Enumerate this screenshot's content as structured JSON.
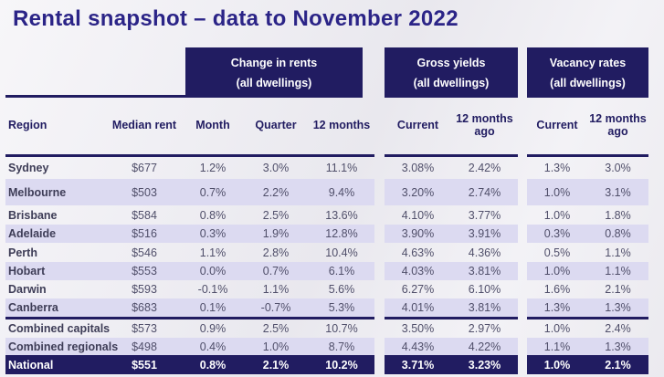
{
  "title": "Rental snapshot – data to November 2022",
  "colors": {
    "navy": "#211c61",
    "stripe_lavender": "#dcdaf1",
    "title_blue": "#2b2487",
    "value_text": "#504f6a"
  },
  "table": {
    "group_headers": [
      {
        "line1": "Change in rents",
        "line2": "(all dwellings)"
      },
      {
        "line1": "Gross yields",
        "line2": "(all dwellings)"
      },
      {
        "line1": "Vacancy rates",
        "line2": "(all dwellings)"
      }
    ],
    "columns": {
      "region": "Region",
      "median_rent": "Median rent",
      "month": "Month",
      "quarter": "Quarter",
      "twelve_months": "12 months",
      "gy_current": "Current",
      "gy_ago_line1": "12 months",
      "gy_ago_line2": "ago",
      "vr_current": "Current",
      "vr_ago_line1": "12 months",
      "vr_ago_line2": "ago"
    },
    "rows": [
      {
        "region": "Sydney",
        "median_rent": "$677",
        "month": "1.2%",
        "quarter": "3.0%",
        "twelve_months": "11.1%",
        "gy_current": "3.08%",
        "gy_ago": "2.42%",
        "vr_current": "1.3%",
        "vr_ago": "3.0%"
      },
      {
        "region": "Melbourne",
        "median_rent": "$503",
        "month": "0.7%",
        "quarter": "2.2%",
        "twelve_months": "9.4%",
        "gy_current": "3.20%",
        "gy_ago": "2.74%",
        "vr_current": "1.0%",
        "vr_ago": "3.1%"
      },
      {
        "region": "Brisbane",
        "median_rent": "$584",
        "month": "0.8%",
        "quarter": "2.5%",
        "twelve_months": "13.6%",
        "gy_current": "4.10%",
        "gy_ago": "3.77%",
        "vr_current": "1.0%",
        "vr_ago": "1.8%"
      },
      {
        "region": "Adelaide",
        "median_rent": "$516",
        "month": "0.3%",
        "quarter": "1.9%",
        "twelve_months": "12.8%",
        "gy_current": "3.90%",
        "gy_ago": "3.91%",
        "vr_current": "0.3%",
        "vr_ago": "0.8%"
      },
      {
        "region": "Perth",
        "median_rent": "$546",
        "month": "1.1%",
        "quarter": "2.8%",
        "twelve_months": "10.4%",
        "gy_current": "4.63%",
        "gy_ago": "4.36%",
        "vr_current": "0.5%",
        "vr_ago": "1.1%"
      },
      {
        "region": "Hobart",
        "median_rent": "$553",
        "month": "0.0%",
        "quarter": "0.7%",
        "twelve_months": "6.1%",
        "gy_current": "4.03%",
        "gy_ago": "3.81%",
        "vr_current": "1.0%",
        "vr_ago": "1.1%"
      },
      {
        "region": "Darwin",
        "median_rent": "$593",
        "month": "-0.1%",
        "quarter": "1.1%",
        "twelve_months": "5.6%",
        "gy_current": "6.27%",
        "gy_ago": "6.10%",
        "vr_current": "1.6%",
        "vr_ago": "2.1%"
      },
      {
        "region": "Canberra",
        "median_rent": "$683",
        "month": "0.1%",
        "quarter": "-0.7%",
        "twelve_months": "5.3%",
        "gy_current": "4.01%",
        "gy_ago": "3.81%",
        "vr_current": "1.3%",
        "vr_ago": "1.3%"
      },
      {
        "region": "Combined capitals",
        "median_rent": "$573",
        "month": "0.9%",
        "quarter": "2.5%",
        "twelve_months": "10.7%",
        "gy_current": "3.50%",
        "gy_ago": "2.97%",
        "vr_current": "1.0%",
        "vr_ago": "2.4%"
      },
      {
        "region": "Combined regionals",
        "median_rent": "$498",
        "month": "0.4%",
        "quarter": "1.0%",
        "twelve_months": "8.7%",
        "gy_current": "4.43%",
        "gy_ago": "4.22%",
        "vr_current": "1.1%",
        "vr_ago": "1.3%"
      },
      {
        "region": "National",
        "median_rent": "$551",
        "month": "0.8%",
        "quarter": "2.1%",
        "twelve_months": "10.2%",
        "gy_current": "3.71%",
        "gy_ago": "3.23%",
        "vr_current": "1.0%",
        "vr_ago": "2.1%",
        "emphasis": true
      }
    ]
  }
}
